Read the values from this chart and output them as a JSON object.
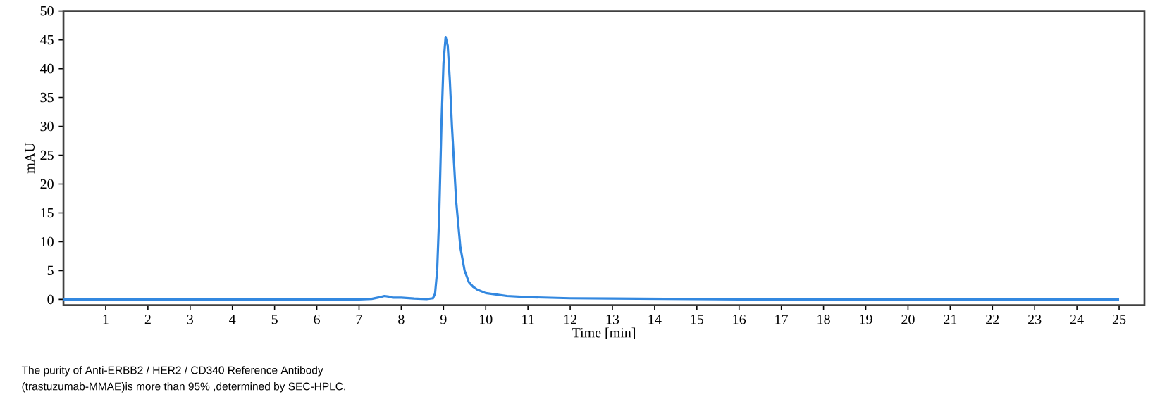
{
  "chart_data": {
    "type": "line",
    "xlabel": "Time [min]",
    "ylabel": "mAU",
    "annotations": [
      "The purity of Anti-ERBB2 / HER2 / CD340 Reference Antibody",
      "(trastuzumab-MMAE)is more than 95% ,determined by SEC-HPLC."
    ],
    "x": [
      0,
      2,
      4,
      6,
      7,
      7.3,
      7.5,
      7.6,
      7.7,
      7.8,
      8.0,
      8.3,
      8.6,
      8.75,
      8.8,
      8.85,
      8.9,
      8.95,
      9.0,
      9.05,
      9.1,
      9.15,
      9.2,
      9.3,
      9.4,
      9.5,
      9.6,
      9.7,
      9.8,
      10.0,
      10.5,
      11,
      12,
      13,
      14,
      15,
      16,
      20,
      25
    ],
    "series": [
      {
        "color": "#3388e0",
        "values": [
          0,
          0,
          0,
          0,
          0,
          0.1,
          0.4,
          0.6,
          0.5,
          0.3,
          0.3,
          0.15,
          0.05,
          0.2,
          1,
          5,
          15,
          30,
          41,
          45.5,
          44,
          38,
          30,
          17,
          9,
          5,
          3,
          2.2,
          1.7,
          1.1,
          0.6,
          0.4,
          0.2,
          0.15,
          0.1,
          0.05,
          0,
          0,
          0
        ]
      }
    ],
    "xlim": [
      0,
      25.6
    ],
    "ylim": [
      -1,
      50
    ],
    "xticks": [
      1,
      2,
      3,
      4,
      5,
      6,
      7,
      8,
      9,
      10,
      11,
      12,
      13,
      14,
      15,
      16,
      17,
      18,
      19,
      20,
      21,
      22,
      23,
      24,
      25
    ],
    "yticks": [
      0,
      5,
      10,
      15,
      20,
      25,
      30,
      35,
      40,
      45,
      50
    ],
    "marker": "none",
    "line_style": "solid"
  }
}
